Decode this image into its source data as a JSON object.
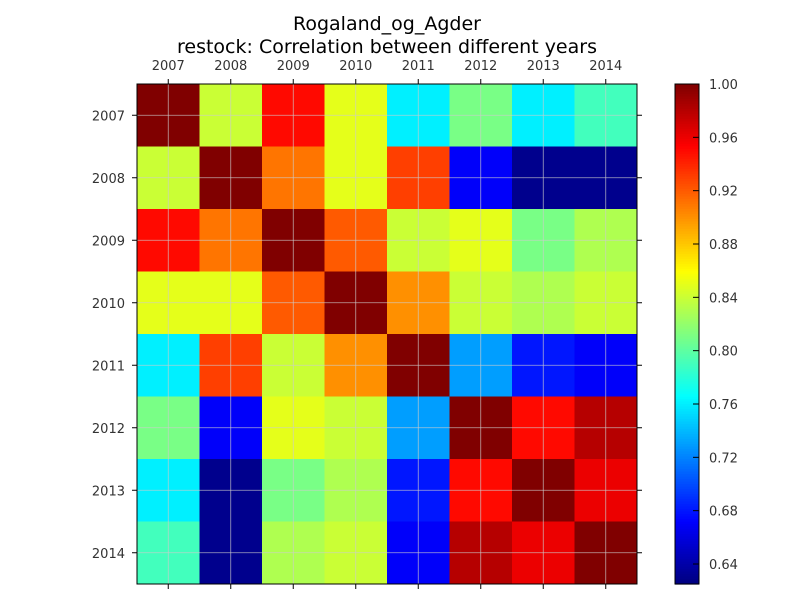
{
  "chart_data": {
    "type": "heatmap",
    "title": "Rogaland_og_Agder",
    "subtitle": "restock: Correlation between different years",
    "xlabel": "",
    "ylabel": "",
    "x_categories": [
      "2007",
      "2008",
      "2009",
      "2010",
      "2011",
      "2012",
      "2013",
      "2014"
    ],
    "y_categories": [
      "2007",
      "2008",
      "2009",
      "2010",
      "2011",
      "2012",
      "2013",
      "2014"
    ],
    "values": [
      [
        1.0,
        0.84,
        0.95,
        0.85,
        0.76,
        0.81,
        0.76,
        0.79
      ],
      [
        0.84,
        1.0,
        0.91,
        0.85,
        0.93,
        0.67,
        0.63,
        0.63
      ],
      [
        0.95,
        0.91,
        1.0,
        0.92,
        0.84,
        0.85,
        0.81,
        0.83
      ],
      [
        0.85,
        0.85,
        0.92,
        1.0,
        0.9,
        0.84,
        0.83,
        0.84
      ],
      [
        0.76,
        0.93,
        0.84,
        0.9,
        1.0,
        0.73,
        0.68,
        0.67
      ],
      [
        0.81,
        0.67,
        0.85,
        0.84,
        0.73,
        1.0,
        0.95,
        0.98
      ],
      [
        0.76,
        0.63,
        0.81,
        0.83,
        0.68,
        0.95,
        1.0,
        0.96
      ],
      [
        0.79,
        0.63,
        0.83,
        0.84,
        0.67,
        0.98,
        0.96,
        1.0
      ]
    ],
    "colorbar": {
      "min": 0.625,
      "max": 1.0,
      "ticks": [
        "0.64",
        "0.68",
        "0.72",
        "0.76",
        "0.80",
        "0.84",
        "0.88",
        "0.92",
        "0.96",
        "1.00"
      ],
      "colormap": "jet"
    },
    "x_axis_position": "top",
    "grid": true,
    "grid_color": "#cccccc"
  }
}
